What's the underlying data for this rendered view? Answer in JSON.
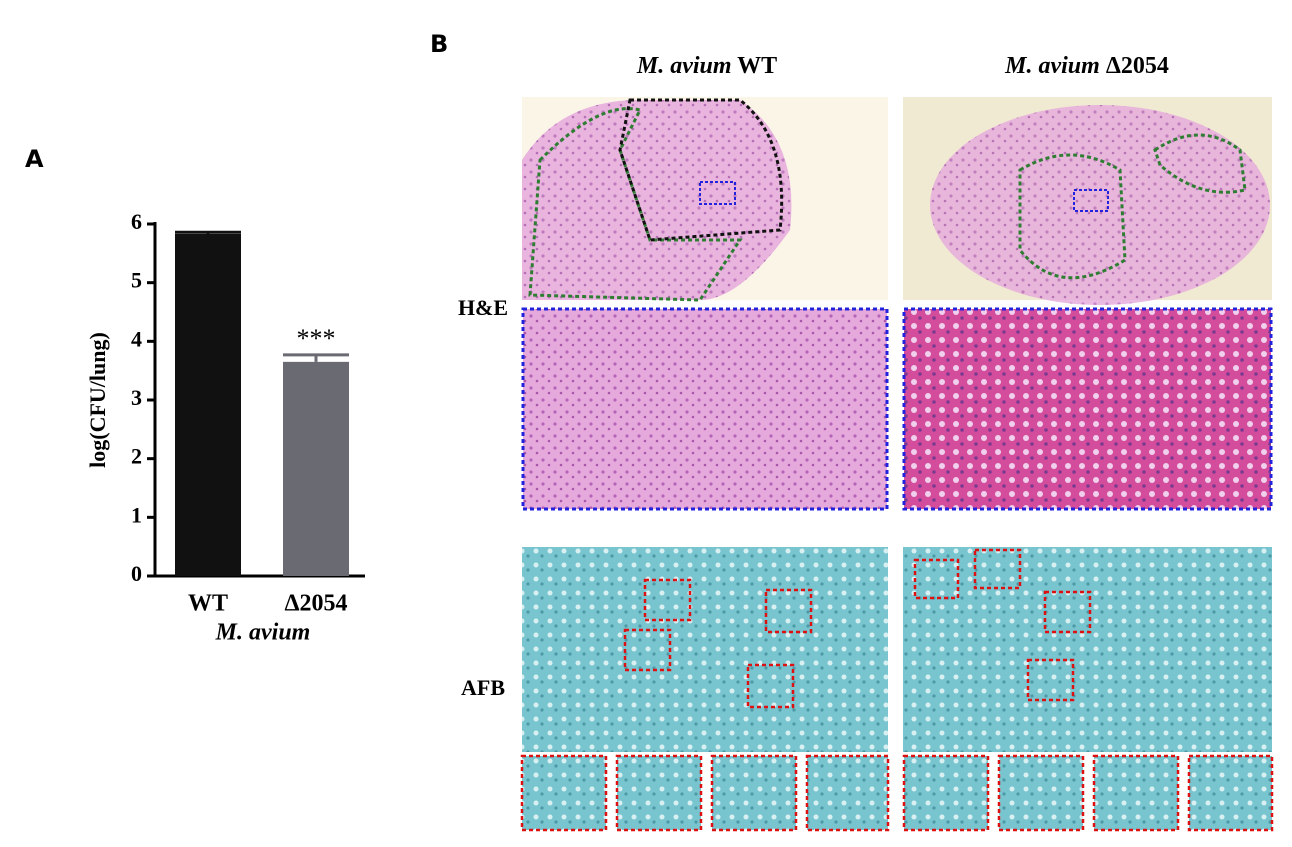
{
  "chart_data": {
    "type": "bar",
    "panel_label": "A",
    "categories": [
      "WT",
      "Δ2054"
    ],
    "values": [
      5.83,
      3.65
    ],
    "errors": [
      0.03,
      0.12
    ],
    "colors": [
      "#111111",
      "#6a6b72"
    ],
    "significance": [
      null,
      "***"
    ],
    "xlabel": "M. avium",
    "ylabel": "log(CFU/lung)",
    "ylim": [
      0,
      6
    ],
    "yticks": [
      0,
      1,
      2,
      3,
      4,
      5,
      6
    ]
  },
  "panel_b": {
    "label": "B",
    "columns": [
      {
        "species": "M. avium",
        "strain": "WT"
      },
      {
        "species": "M. avium",
        "strain": "Δ2054"
      }
    ],
    "rows": [
      "H&E",
      "AFB"
    ]
  }
}
